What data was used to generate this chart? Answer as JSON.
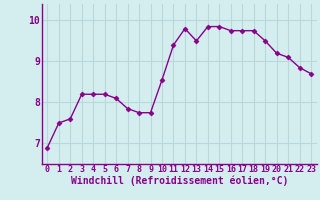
{
  "x": [
    0,
    1,
    2,
    3,
    4,
    5,
    6,
    7,
    8,
    9,
    10,
    11,
    12,
    13,
    14,
    15,
    16,
    17,
    18,
    19,
    20,
    21,
    22,
    23
  ],
  "y": [
    6.9,
    7.5,
    7.6,
    8.2,
    8.2,
    8.2,
    8.1,
    7.85,
    7.75,
    7.75,
    8.55,
    9.4,
    9.8,
    9.5,
    9.85,
    9.85,
    9.75,
    9.75,
    9.75,
    9.5,
    9.2,
    9.1,
    8.85,
    8.7
  ],
  "line_color": "#880088",
  "marker": "D",
  "markersize": 2.5,
  "linewidth": 1.0,
  "bg_color": "#d4eef0",
  "grid_color": "#b8d8dc",
  "xlabel": "Windchill (Refroidissement éolien,°C)",
  "xlabel_fontsize": 7,
  "tick_color": "#880088",
  "ylabel_ticks": [
    7,
    8,
    9,
    10
  ],
  "ylim": [
    6.5,
    10.4
  ],
  "xlim": [
    -0.5,
    23.5
  ],
  "xtick_labels": [
    "0",
    "1",
    "2",
    "3",
    "4",
    "5",
    "6",
    "7",
    "8",
    "9",
    "10",
    "11",
    "12",
    "13",
    "14",
    "15",
    "16",
    "17",
    "18",
    "19",
    "20",
    "21",
    "22",
    "23"
  ],
  "tick_fontsize": 6,
  "spine_color": "#880088"
}
